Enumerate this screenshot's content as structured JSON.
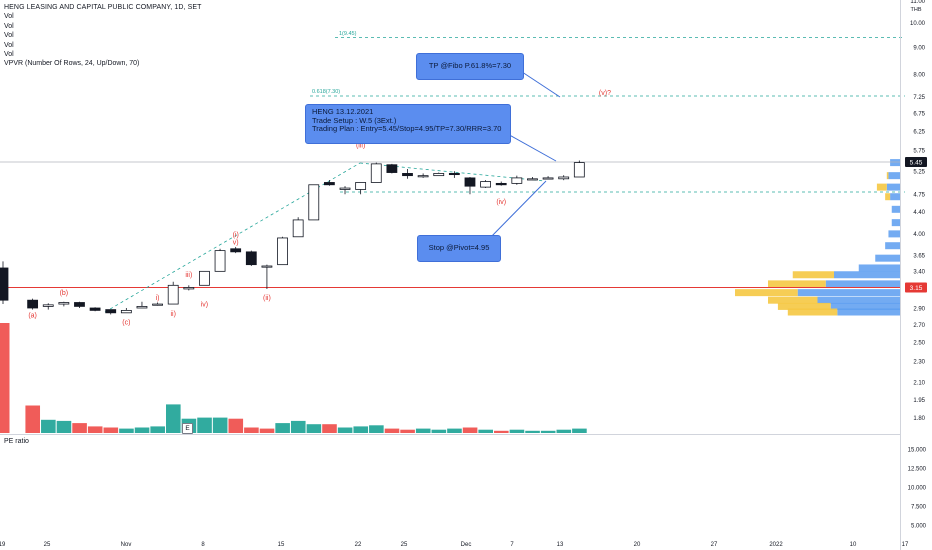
{
  "legend": {
    "title": "HENG LEASING AND CAPITAL PUBLIC COMPANY, 1D, SET",
    "lines": [
      "Vol",
      "Vol",
      "Vol",
      "Vol",
      "Vol"
    ],
    "vpvr": "VPVR (Number Of Rows, 24, Up/Down, 70)"
  },
  "annotations": {
    "tp_text": "TP @Fibo P.61.8%=7.30",
    "trade_lines": [
      "HENG 13.12.2021",
      "Trade Setup : W.5 (3Ext.)",
      "Trading Plan : Entry=5.45/Stop=4.95/TP=7.30/RRR=3.70"
    ],
    "stop_text": "Stop @Pivot=4.95",
    "fib1_label": "1(9.45)",
    "fib2_label": "0.618(7.30)",
    "e_badge": "E"
  },
  "pe_label": "PE ratio",
  "colors": {
    "up_candle": "#ffffff",
    "down_candle": "#131722",
    "vol_up": "#26a69a",
    "vol_down": "#ef5350",
    "wave_label": "#e53935",
    "fib_line": "#26a69a",
    "support_line": "#e53935",
    "trend_dash": "#26a69a",
    "callout_bg": "#5b8def",
    "vpvr_up": "#5b9cf0",
    "vpvr_down": "#f5c842"
  },
  "chart_data": {
    "type": "candlestick",
    "title": "HENG LEASING AND CAPITAL PUBLIC COMPANY, 1D, SET",
    "currency": "THB",
    "y_axis_scale": "log",
    "price_ticks": [
      "11.00",
      "10.00",
      "9.00",
      "8.00",
      "7.25",
      "6.75",
      "6.25",
      "5.75",
      "5.25",
      "4.75",
      "4.40",
      "4.00",
      "3.65",
      "3.40",
      "2.90",
      "2.70",
      "2.50",
      "2.30",
      "2.10",
      "1.95",
      "1.80"
    ],
    "current_price": "5.45",
    "support_price": "3.15",
    "pe_ticks": [
      "15.000",
      "12.500",
      "10.000",
      "7.500",
      "5.000"
    ],
    "x_ticks": [
      "19",
      "25",
      "Nov",
      "8",
      "15",
      "22",
      "25",
      "Dec",
      "7",
      "13",
      "20",
      "27",
      "2022",
      "10",
      "17"
    ],
    "candles": [
      {
        "o": 3.45,
        "h": 3.55,
        "l": 2.95,
        "c": 3.0
      },
      {
        "o": 3.0,
        "h": 3.02,
        "l": 2.88,
        "c": 2.9
      },
      {
        "o": 2.92,
        "h": 2.96,
        "l": 2.88,
        "c": 2.94
      },
      {
        "o": 2.95,
        "h": 2.98,
        "l": 2.92,
        "c": 2.97
      },
      {
        "o": 2.97,
        "h": 2.98,
        "l": 2.9,
        "c": 2.92
      },
      {
        "o": 2.9,
        "h": 2.91,
        "l": 2.86,
        "c": 2.87
      },
      {
        "o": 2.88,
        "h": 2.88,
        "l": 2.82,
        "c": 2.84
      },
      {
        "o": 2.84,
        "h": 2.9,
        "l": 2.84,
        "c": 2.87
      },
      {
        "o": 2.9,
        "h": 2.98,
        "l": 2.9,
        "c": 2.92
      },
      {
        "o": 2.95,
        "h": 2.97,
        "l": 2.93,
        "c": 2.95
      },
      {
        "o": 2.95,
        "h": 3.25,
        "l": 2.95,
        "c": 3.2
      },
      {
        "o": 3.15,
        "h": 3.2,
        "l": 3.13,
        "c": 3.17
      },
      {
        "o": 3.2,
        "h": 3.4,
        "l": 3.2,
        "c": 3.4
      },
      {
        "o": 3.4,
        "h": 3.75,
        "l": 3.4,
        "c": 3.72
      },
      {
        "o": 3.75,
        "h": 3.78,
        "l": 3.68,
        "c": 3.7
      },
      {
        "o": 3.7,
        "h": 3.72,
        "l": 3.48,
        "c": 3.5
      },
      {
        "o": 3.48,
        "h": 3.5,
        "l": 3.15,
        "c": 3.48
      },
      {
        "o": 3.5,
        "h": 3.95,
        "l": 3.5,
        "c": 3.93
      },
      {
        "o": 3.95,
        "h": 4.3,
        "l": 3.95,
        "c": 4.25
      },
      {
        "o": 4.25,
        "h": 4.95,
        "l": 4.25,
        "c": 4.95
      },
      {
        "o": 5.0,
        "h": 5.05,
        "l": 4.93,
        "c": 4.95
      },
      {
        "o": 4.85,
        "h": 4.92,
        "l": 4.75,
        "c": 4.88
      },
      {
        "o": 4.85,
        "h": 5.0,
        "l": 4.75,
        "c": 5.0
      },
      {
        "o": 5.0,
        "h": 5.45,
        "l": 5.0,
        "c": 5.42
      },
      {
        "o": 5.4,
        "h": 5.42,
        "l": 5.2,
        "c": 5.22
      },
      {
        "o": 5.2,
        "h": 5.3,
        "l": 5.08,
        "c": 5.15
      },
      {
        "o": 5.15,
        "h": 5.2,
        "l": 5.1,
        "c": 5.15
      },
      {
        "o": 5.15,
        "h": 5.22,
        "l": 5.15,
        "c": 5.2
      },
      {
        "o": 5.2,
        "h": 5.25,
        "l": 5.1,
        "c": 5.18
      },
      {
        "o": 5.1,
        "h": 5.12,
        "l": 4.75,
        "c": 4.92
      },
      {
        "o": 4.9,
        "h": 5.05,
        "l": 4.88,
        "c": 5.02
      },
      {
        "o": 4.98,
        "h": 5.02,
        "l": 4.93,
        "c": 4.95
      },
      {
        "o": 4.98,
        "h": 5.15,
        "l": 4.95,
        "c": 5.1
      },
      {
        "o": 5.08,
        "h": 5.12,
        "l": 5.05,
        "c": 5.08
      },
      {
        "o": 5.1,
        "h": 5.14,
        "l": 5.08,
        "c": 5.1
      },
      {
        "o": 5.08,
        "h": 5.16,
        "l": 5.05,
        "c": 5.12
      },
      {
        "o": 5.12,
        "h": 5.5,
        "l": 5.12,
        "c": 5.45
      }
    ],
    "volume_relative": [
      1.0,
      0.25,
      0.12,
      0.11,
      0.09,
      0.06,
      0.05,
      0.04,
      0.05,
      0.06,
      0.26,
      0.13,
      0.14,
      0.14,
      0.13,
      0.05,
      0.04,
      0.09,
      0.11,
      0.08,
      0.08,
      0.05,
      0.06,
      0.07,
      0.04,
      0.03,
      0.04,
      0.03,
      0.04,
      0.05,
      0.03,
      0.02,
      0.03,
      0.02,
      0.02,
      0.03,
      0.04
    ],
    "volume_direction": [
      "down",
      "down",
      "up",
      "up",
      "down",
      "down",
      "down",
      "up",
      "up",
      "up",
      "up",
      "up",
      "up",
      "up",
      "down",
      "down",
      "down",
      "up",
      "up",
      "up",
      "down",
      "up",
      "up",
      "up",
      "down",
      "down",
      "up",
      "up",
      "up",
      "down",
      "up",
      "down",
      "up",
      "up",
      "up",
      "up",
      "up"
    ],
    "wave_labels": [
      {
        "text": "(a)",
        "bar": 1,
        "price": 2.78
      },
      {
        "text": "(b)",
        "bar": 3,
        "price": 3.07
      },
      {
        "text": "(c)",
        "bar": 7,
        "price": 2.7
      },
      {
        "text": "i)",
        "bar": 9,
        "price": 3.0
      },
      {
        "text": "ii)",
        "bar": 10,
        "price": 2.8
      },
      {
        "text": "iii)",
        "bar": 11,
        "price": 3.32
      },
      {
        "text": "iv)",
        "bar": 12,
        "price": 2.92
      },
      {
        "text": "v)",
        "bar": 14,
        "price": 3.82
      },
      {
        "text": "(i)",
        "bar": 14,
        "price": 3.95
      },
      {
        "text": "(ii)",
        "bar": 16,
        "price": 3.0
      },
      {
        "text": "(iii)",
        "bar": 22,
        "price": 5.82
      },
      {
        "text": "(iv)",
        "bar": 31,
        "price": 4.55
      },
      {
        "text": "(v)?",
        "bar": 37,
        "price": 7.3
      }
    ],
    "vpvr_rows": [
      {
        "price": 5.45,
        "up": 0.06,
        "down": 0.0
      },
      {
        "price": 5.15,
        "up": 0.07,
        "down": 0.01
      },
      {
        "price": 4.9,
        "up": 0.08,
        "down": 0.06
      },
      {
        "price": 4.7,
        "up": 0.06,
        "down": 0.03
      },
      {
        "price": 4.45,
        "up": 0.05,
        "down": 0.0
      },
      {
        "price": 4.2,
        "up": 0.05,
        "down": 0.0
      },
      {
        "price": 4.0,
        "up": 0.07,
        "down": 0.0
      },
      {
        "price": 3.8,
        "up": 0.09,
        "down": 0.0
      },
      {
        "price": 3.6,
        "up": 0.15,
        "down": 0.0
      },
      {
        "price": 3.45,
        "up": 0.25,
        "down": 0.0
      },
      {
        "price": 3.35,
        "up": 0.4,
        "down": 0.25
      },
      {
        "price": 3.22,
        "up": 0.45,
        "down": 0.35
      },
      {
        "price": 3.1,
        "up": 0.62,
        "down": 0.38
      },
      {
        "price": 3.0,
        "up": 0.5,
        "down": 0.3
      },
      {
        "price": 2.92,
        "up": 0.42,
        "down": 0.32
      },
      {
        "price": 2.85,
        "up": 0.38,
        "down": 0.3
      }
    ]
  }
}
